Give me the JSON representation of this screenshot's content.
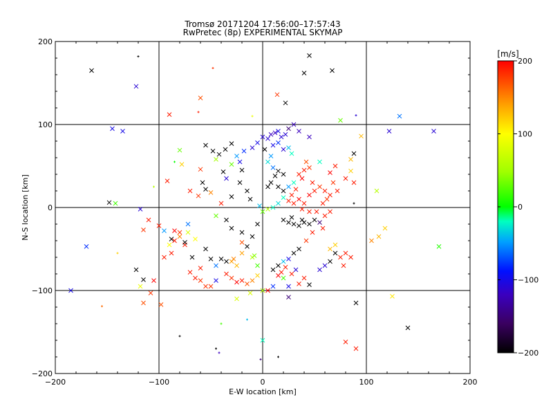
{
  "chart_data": {
    "type": "scatter",
    "title": "Tromsø 20171204 17:56:00–17:57:43",
    "subtitle": "RwPretec (8p) EXPERIMENTAL SKYMAP",
    "xlabel": "E-W location [km]",
    "ylabel": "N-S location [km]",
    "xlim": [
      -200,
      200
    ],
    "ylim": [
      -200,
      200
    ],
    "x_ticks": [
      "−200",
      "−100",
      "0",
      "100",
      "200"
    ],
    "y_ticks": [
      "−200",
      "−100",
      "0",
      "100",
      "200"
    ],
    "grid": true,
    "colorbar": {
      "label": "[m/s]",
      "min": -200,
      "max": 200,
      "ticks": [
        "−200",
        "−100",
        "0",
        "100",
        "200"
      ]
    },
    "points": [
      [
        -165,
        165,
        -200,
        "x"
      ],
      [
        -122,
        146,
        -110,
        "x"
      ],
      [
        -120,
        182,
        -200,
        "+"
      ],
      [
        -48,
        168,
        180,
        "+"
      ],
      [
        -60,
        132,
        170,
        "x"
      ],
      [
        40,
        162,
        -200,
        "x"
      ],
      [
        45,
        183,
        -200,
        "x"
      ],
      [
        67,
        165,
        -200,
        "x"
      ],
      [
        14,
        136,
        180,
        "x"
      ],
      [
        -90,
        112,
        190,
        "x"
      ],
      [
        -145,
        95,
        -100,
        "x"
      ],
      [
        -135,
        92,
        -100,
        "x"
      ],
      [
        -62,
        115,
        190,
        "+"
      ],
      [
        -10,
        110,
        90,
        "+"
      ],
      [
        22,
        126,
        -200,
        "x"
      ],
      [
        75,
        105,
        30,
        "x"
      ],
      [
        90,
        111,
        -110,
        "+"
      ],
      [
        95,
        86,
        130,
        "x"
      ],
      [
        122,
        92,
        -110,
        "x"
      ],
      [
        132,
        110,
        -60,
        "x"
      ],
      [
        165,
        92,
        -110,
        "x"
      ],
      [
        -80,
        69,
        30,
        "x"
      ],
      [
        -85,
        55,
        0,
        "+"
      ],
      [
        -55,
        75,
        -200,
        "x"
      ],
      [
        -48,
        68,
        -200,
        "x"
      ],
      [
        -42,
        64,
        -200,
        "x"
      ],
      [
        -36,
        70,
        -200,
        "x"
      ],
      [
        -30,
        77,
        -200,
        "x"
      ],
      [
        -45,
        58,
        50,
        "x"
      ],
      [
        -60,
        46,
        180,
        "x"
      ],
      [
        -38,
        43,
        -200,
        "x"
      ],
      [
        -78,
        52,
        120,
        "x"
      ],
      [
        -92,
        32,
        190,
        "x"
      ],
      [
        -58,
        30,
        -200,
        "x"
      ],
      [
        -55,
        22,
        -200,
        "x"
      ],
      [
        -62,
        14,
        180,
        "x"
      ],
      [
        -70,
        20,
        190,
        "x"
      ],
      [
        -50,
        18,
        150,
        "x"
      ],
      [
        -105,
        25,
        60,
        "+"
      ],
      [
        -148,
        6,
        -200,
        "x"
      ],
      [
        -142,
        5,
        20,
        "x"
      ],
      [
        -118,
        -2,
        -110,
        "x"
      ],
      [
        -110,
        -15,
        190,
        "x"
      ],
      [
        -115,
        -27,
        180,
        "x"
      ],
      [
        -100,
        -22,
        190,
        "x"
      ],
      [
        -85,
        -28,
        200,
        "x"
      ],
      [
        -80,
        -30,
        180,
        "x"
      ],
      [
        -88,
        -38,
        -200,
        "x"
      ],
      [
        -95,
        -28,
        -50,
        "x"
      ],
      [
        -75,
        -45,
        190,
        "x"
      ],
      [
        -72,
        -20,
        -60,
        "x"
      ],
      [
        -170,
        -47,
        -80,
        "x"
      ],
      [
        -185,
        -100,
        -100,
        "x"
      ],
      [
        -155,
        -119,
        160,
        "+"
      ],
      [
        -115,
        -115,
        170,
        "x"
      ],
      [
        -98,
        -117,
        170,
        "x"
      ],
      [
        -115,
        -87,
        -200,
        "x"
      ],
      [
        -122,
        -75,
        -200,
        "x"
      ],
      [
        -118,
        -95,
        90,
        "x"
      ],
      [
        -108,
        -103,
        180,
        "x"
      ],
      [
        -140,
        -55,
        120,
        "+"
      ],
      [
        -80,
        -155,
        -200,
        "+"
      ],
      [
        -68,
        -60,
        -200,
        "x"
      ],
      [
        -60,
        -73,
        190,
        "x"
      ],
      [
        -65,
        -85,
        190,
        "x"
      ],
      [
        -55,
        -95,
        180,
        "x"
      ],
      [
        -45,
        -70,
        -60,
        "x"
      ],
      [
        -40,
        -62,
        -200,
        "x"
      ],
      [
        -35,
        -65,
        -200,
        "x"
      ],
      [
        -30,
        -65,
        140,
        "x"
      ],
      [
        -28,
        -62,
        150,
        "x"
      ],
      [
        -25,
        -70,
        130,
        "x"
      ],
      [
        -35,
        -80,
        190,
        "x"
      ],
      [
        -30,
        -85,
        180,
        "x"
      ],
      [
        -25,
        -90,
        200,
        "x"
      ],
      [
        -20,
        -88,
        190,
        "x"
      ],
      [
        -15,
        -92,
        170,
        "x"
      ],
      [
        -10,
        -88,
        150,
        "x"
      ],
      [
        -5,
        -82,
        120,
        "x"
      ],
      [
        -45,
        -88,
        -100,
        "x"
      ],
      [
        -20,
        -55,
        140,
        "x"
      ],
      [
        -10,
        -60,
        60,
        "x"
      ],
      [
        -5,
        -70,
        20,
        "x"
      ],
      [
        -12,
        -103,
        80,
        "x"
      ],
      [
        0,
        -100,
        60,
        "x"
      ],
      [
        -40,
        -140,
        20,
        "+"
      ],
      [
        -45,
        -170,
        -200,
        "+"
      ],
      [
        -42,
        -175,
        -120,
        "+"
      ],
      [
        0,
        -160,
        -20,
        "x"
      ],
      [
        -15,
        -135,
        -40,
        "+"
      ],
      [
        15,
        -180,
        -200,
        "+"
      ],
      [
        -2,
        -183,
        -150,
        "+"
      ],
      [
        -12,
        10,
        -200,
        "x"
      ],
      [
        -15,
        20,
        -200,
        "x"
      ],
      [
        -22,
        30,
        -200,
        "x"
      ],
      [
        -30,
        13,
        -200,
        "x"
      ],
      [
        -40,
        5,
        190,
        "x"
      ],
      [
        -45,
        -10,
        30,
        "x"
      ],
      [
        -35,
        -15,
        -200,
        "x"
      ],
      [
        -30,
        -25,
        -200,
        "x"
      ],
      [
        -20,
        -30,
        -200,
        "x"
      ],
      [
        -5,
        -20,
        -200,
        "x"
      ],
      [
        -10,
        -35,
        -200,
        "x"
      ],
      [
        -20,
        -42,
        170,
        "x"
      ],
      [
        -15,
        -47,
        -200,
        "x"
      ],
      [
        -8,
        -58,
        40,
        "x"
      ],
      [
        5,
        83,
        -110,
        "x"
      ],
      [
        8,
        88,
        -120,
        "x"
      ],
      [
        12,
        90,
        -120,
        "x"
      ],
      [
        15,
        92,
        -100,
        "x"
      ],
      [
        18,
        85,
        -110,
        "x"
      ],
      [
        22,
        88,
        -110,
        "x"
      ],
      [
        25,
        95,
        -150,
        "x"
      ],
      [
        30,
        100,
        -120,
        "x"
      ],
      [
        35,
        92,
        -120,
        "x"
      ],
      [
        45,
        85,
        -120,
        "x"
      ],
      [
        10,
        75,
        -100,
        "x"
      ],
      [
        15,
        78,
        -80,
        "x"
      ],
      [
        20,
        70,
        -110,
        "x"
      ],
      [
        25,
        72,
        -40,
        "x"
      ],
      [
        28,
        65,
        -20,
        "x"
      ],
      [
        8,
        62,
        -50,
        "x"
      ],
      [
        5,
        55,
        -30,
        "x"
      ],
      [
        10,
        48,
        -60,
        "x"
      ],
      [
        15,
        44,
        -200,
        "x"
      ],
      [
        20,
        40,
        -200,
        "x"
      ],
      [
        12,
        38,
        -200,
        "x"
      ],
      [
        8,
        30,
        -200,
        "x"
      ],
      [
        5,
        25,
        -200,
        "x"
      ],
      [
        15,
        25,
        -200,
        "x"
      ],
      [
        20,
        20,
        -200,
        "x"
      ],
      [
        25,
        25,
        -50,
        "x"
      ],
      [
        30,
        30,
        -20,
        "x"
      ],
      [
        35,
        40,
        190,
        "x"
      ],
      [
        40,
        45,
        190,
        "x"
      ],
      [
        42,
        55,
        170,
        "x"
      ],
      [
        45,
        48,
        180,
        "x"
      ],
      [
        38,
        35,
        200,
        "x"
      ],
      [
        32,
        22,
        190,
        "x"
      ],
      [
        28,
        15,
        190,
        "x"
      ],
      [
        35,
        10,
        200,
        "x"
      ],
      [
        40,
        5,
        190,
        "x"
      ],
      [
        45,
        15,
        200,
        "x"
      ],
      [
        50,
        20,
        190,
        "x"
      ],
      [
        48,
        30,
        190,
        "x"
      ],
      [
        55,
        25,
        180,
        "x"
      ],
      [
        60,
        20,
        190,
        "x"
      ],
      [
        62,
        10,
        180,
        "x"
      ],
      [
        58,
        5,
        190,
        "x"
      ],
      [
        52,
        -5,
        190,
        "x"
      ],
      [
        45,
        -5,
        190,
        "x"
      ],
      [
        38,
        -2,
        190,
        "x"
      ],
      [
        30,
        5,
        190,
        "x"
      ],
      [
        25,
        8,
        190,
        "x"
      ],
      [
        20,
        12,
        -20,
        "x"
      ],
      [
        15,
        5,
        -30,
        "x"
      ],
      [
        10,
        0,
        -20,
        "x"
      ],
      [
        5,
        -2,
        60,
        "x"
      ],
      [
        0,
        -5,
        30,
        "x"
      ],
      [
        -3,
        2,
        -40,
        "x"
      ],
      [
        65,
        42,
        200,
        "x"
      ],
      [
        70,
        50,
        190,
        "x"
      ],
      [
        68,
        30,
        180,
        "x"
      ],
      [
        72,
        20,
        190,
        "x"
      ],
      [
        65,
        15,
        190,
        "x"
      ],
      [
        55,
        55,
        -20,
        "x"
      ],
      [
        85,
        58,
        130,
        "x"
      ],
      [
        85,
        44,
        120,
        "x"
      ],
      [
        88,
        30,
        190,
        "x"
      ],
      [
        80,
        35,
        190,
        "x"
      ],
      [
        88,
        65,
        -200,
        "x"
      ],
      [
        88,
        5,
        -200,
        "+"
      ],
      [
        20,
        -15,
        -200,
        "x"
      ],
      [
        25,
        -18,
        -200,
        "x"
      ],
      [
        30,
        -20,
        -200,
        "x"
      ],
      [
        35,
        -22,
        -200,
        "x"
      ],
      [
        40,
        -18,
        -200,
        "x"
      ],
      [
        45,
        -20,
        -200,
        "x"
      ],
      [
        50,
        -15,
        -200,
        "x"
      ],
      [
        55,
        -18,
        -150,
        "x"
      ],
      [
        28,
        -12,
        -200,
        "x"
      ],
      [
        38,
        -15,
        -200,
        "x"
      ],
      [
        60,
        -10,
        190,
        "x"
      ],
      [
        65,
        -5,
        190,
        "x"
      ],
      [
        58,
        -25,
        190,
        "x"
      ],
      [
        48,
        -30,
        190,
        "x"
      ],
      [
        42,
        -40,
        180,
        "x"
      ],
      [
        35,
        -50,
        -200,
        "x"
      ],
      [
        30,
        -55,
        -200,
        "x"
      ],
      [
        25,
        -62,
        -100,
        "x"
      ],
      [
        20,
        -65,
        -40,
        "x"
      ],
      [
        15,
        -70,
        -200,
        "x"
      ],
      [
        10,
        -75,
        -200,
        "x"
      ],
      [
        18,
        -78,
        190,
        "x"
      ],
      [
        22,
        -72,
        190,
        "x"
      ],
      [
        28,
        -80,
        190,
        "x"
      ],
      [
        32,
        -75,
        -110,
        "x"
      ],
      [
        40,
        -85,
        190,
        "x"
      ],
      [
        35,
        -92,
        190,
        "x"
      ],
      [
        25,
        -95,
        -100,
        "x"
      ],
      [
        20,
        -85,
        20,
        "x"
      ],
      [
        15,
        -82,
        200,
        "x"
      ],
      [
        45,
        -93,
        -200,
        "x"
      ],
      [
        55,
        -75,
        -110,
        "x"
      ],
      [
        60,
        -70,
        -110,
        "x"
      ],
      [
        65,
        -65,
        -200,
        "x"
      ],
      [
        70,
        -55,
        -200,
        "x"
      ],
      [
        65,
        -50,
        130,
        "x"
      ],
      [
        70,
        -45,
        120,
        "x"
      ],
      [
        75,
        -60,
        190,
        "x"
      ],
      [
        80,
        -55,
        190,
        "x"
      ],
      [
        78,
        -70,
        190,
        "x"
      ],
      [
        85,
        -60,
        190,
        "x"
      ],
      [
        90,
        -115,
        -200,
        "x"
      ],
      [
        80,
        -162,
        190,
        "x"
      ],
      [
        90,
        -170,
        190,
        "x"
      ],
      [
        140,
        -145,
        -200,
        "x"
      ],
      [
        125,
        -107,
        110,
        "x"
      ],
      [
        105,
        -40,
        150,
        "x"
      ],
      [
        112,
        -35,
        130,
        "x"
      ],
      [
        118,
        -25,
        120,
        "x"
      ],
      [
        110,
        20,
        60,
        "x"
      ],
      [
        170,
        -47,
        10,
        "x"
      ],
      [
        5,
        -100,
        200,
        "x"
      ],
      [
        10,
        -95,
        -80,
        "x"
      ],
      [
        25,
        -108,
        -150,
        "x"
      ],
      [
        -25,
        -110,
        80,
        "x"
      ],
      [
        -50,
        -62,
        -200,
        "x"
      ],
      [
        -55,
        -50,
        -200,
        "x"
      ],
      [
        -65,
        -38,
        100,
        "x"
      ],
      [
        -72,
        -30,
        80,
        "x"
      ],
      [
        -75,
        -42,
        -200,
        "x"
      ],
      [
        -80,
        -35,
        150,
        "x"
      ],
      [
        -85,
        -40,
        190,
        "x"
      ],
      [
        -90,
        -45,
        100,
        "x"
      ],
      [
        -95,
        -60,
        190,
        "x"
      ],
      [
        -88,
        -55,
        190,
        "x"
      ],
      [
        -70,
        -78,
        190,
        "x"
      ],
      [
        -60,
        -88,
        180,
        "x"
      ],
      [
        -50,
        -95,
        180,
        "x"
      ],
      [
        -105,
        -88,
        200,
        "x"
      ],
      [
        -20,
        45,
        -200,
        "x"
      ],
      [
        -22,
        55,
        -100,
        "x"
      ],
      [
        -25,
        62,
        -50,
        "x"
      ],
      [
        -18,
        68,
        -80,
        "x"
      ],
      [
        -10,
        72,
        -110,
        "x"
      ],
      [
        -5,
        78,
        -100,
        "x"
      ],
      [
        0,
        85,
        -110,
        "x"
      ],
      [
        2,
        70,
        -200,
        "x"
      ],
      [
        -30,
        52,
        30,
        "x"
      ],
      [
        -35,
        35,
        -110,
        "x"
      ]
    ]
  }
}
